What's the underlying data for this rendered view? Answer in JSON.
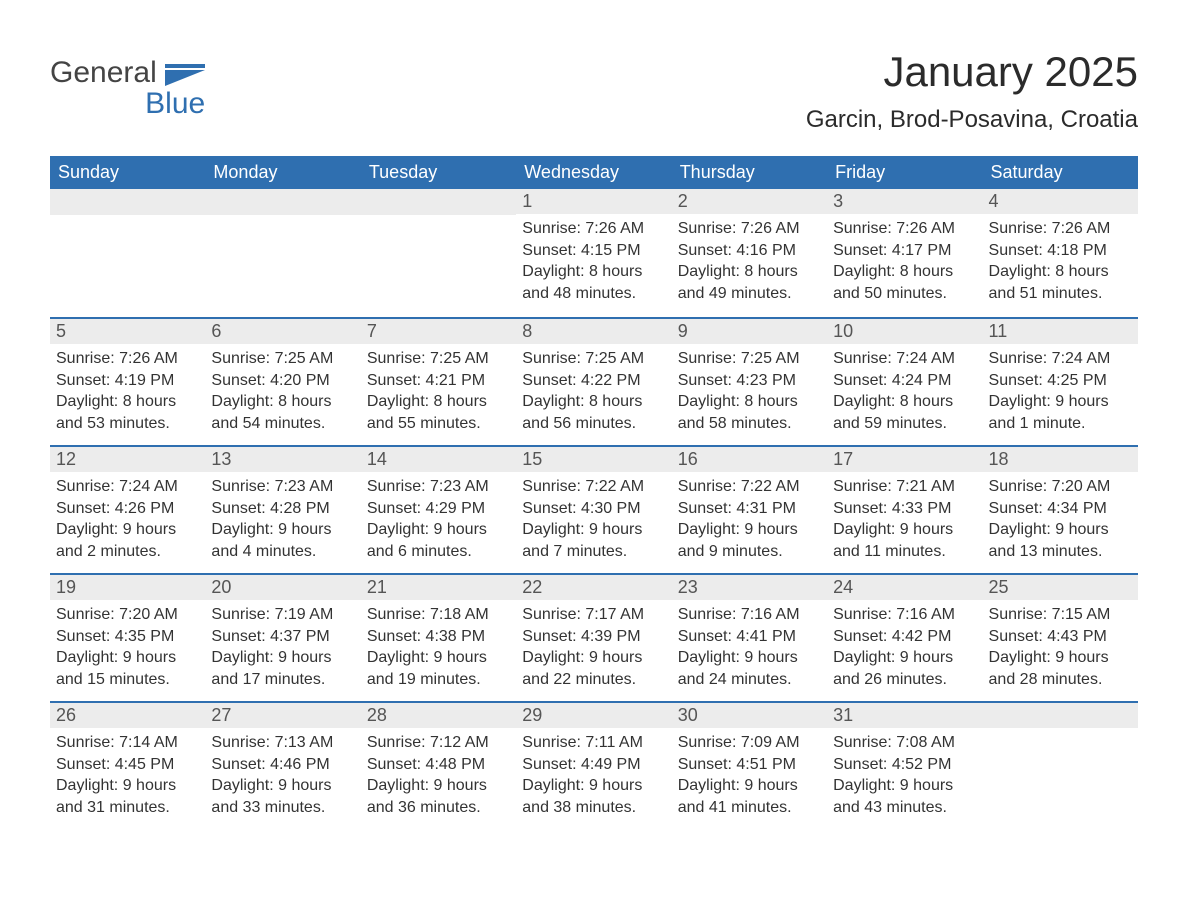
{
  "brand": {
    "word1": "General",
    "word2": "Blue"
  },
  "title": "January 2025",
  "subtitle": "Garcin, Brod-Posavina, Croatia",
  "colors": {
    "header_bg": "#2f6fb0",
    "header_text": "#ffffff",
    "daynum_bg": "#ececec",
    "daynum_text": "#555555",
    "body_text": "#333333",
    "row_border": "#2f6fb0",
    "page_bg": "#ffffff",
    "logo_gray": "#444444",
    "logo_blue": "#2f6fb0"
  },
  "day_headers": [
    "Sunday",
    "Monday",
    "Tuesday",
    "Wednesday",
    "Thursday",
    "Friday",
    "Saturday"
  ],
  "weeks": [
    [
      {
        "n": "",
        "lines": []
      },
      {
        "n": "",
        "lines": []
      },
      {
        "n": "",
        "lines": []
      },
      {
        "n": "1",
        "lines": [
          "Sunrise: 7:26 AM",
          "Sunset: 4:15 PM",
          "Daylight: 8 hours and 48 minutes."
        ]
      },
      {
        "n": "2",
        "lines": [
          "Sunrise: 7:26 AM",
          "Sunset: 4:16 PM",
          "Daylight: 8 hours and 49 minutes."
        ]
      },
      {
        "n": "3",
        "lines": [
          "Sunrise: 7:26 AM",
          "Sunset: 4:17 PM",
          "Daylight: 8 hours and 50 minutes."
        ]
      },
      {
        "n": "4",
        "lines": [
          "Sunrise: 7:26 AM",
          "Sunset: 4:18 PM",
          "Daylight: 8 hours and 51 minutes."
        ]
      }
    ],
    [
      {
        "n": "5",
        "lines": [
          "Sunrise: 7:26 AM",
          "Sunset: 4:19 PM",
          "Daylight: 8 hours and 53 minutes."
        ]
      },
      {
        "n": "6",
        "lines": [
          "Sunrise: 7:25 AM",
          "Sunset: 4:20 PM",
          "Daylight: 8 hours and 54 minutes."
        ]
      },
      {
        "n": "7",
        "lines": [
          "Sunrise: 7:25 AM",
          "Sunset: 4:21 PM",
          "Daylight: 8 hours and 55 minutes."
        ]
      },
      {
        "n": "8",
        "lines": [
          "Sunrise: 7:25 AM",
          "Sunset: 4:22 PM",
          "Daylight: 8 hours and 56 minutes."
        ]
      },
      {
        "n": "9",
        "lines": [
          "Sunrise: 7:25 AM",
          "Sunset: 4:23 PM",
          "Daylight: 8 hours and 58 minutes."
        ]
      },
      {
        "n": "10",
        "lines": [
          "Sunrise: 7:24 AM",
          "Sunset: 4:24 PM",
          "Daylight: 8 hours and 59 minutes."
        ]
      },
      {
        "n": "11",
        "lines": [
          "Sunrise: 7:24 AM",
          "Sunset: 4:25 PM",
          "Daylight: 9 hours and 1 minute."
        ]
      }
    ],
    [
      {
        "n": "12",
        "lines": [
          "Sunrise: 7:24 AM",
          "Sunset: 4:26 PM",
          "Daylight: 9 hours and 2 minutes."
        ]
      },
      {
        "n": "13",
        "lines": [
          "Sunrise: 7:23 AM",
          "Sunset: 4:28 PM",
          "Daylight: 9 hours and 4 minutes."
        ]
      },
      {
        "n": "14",
        "lines": [
          "Sunrise: 7:23 AM",
          "Sunset: 4:29 PM",
          "Daylight: 9 hours and 6 minutes."
        ]
      },
      {
        "n": "15",
        "lines": [
          "Sunrise: 7:22 AM",
          "Sunset: 4:30 PM",
          "Daylight: 9 hours and 7 minutes."
        ]
      },
      {
        "n": "16",
        "lines": [
          "Sunrise: 7:22 AM",
          "Sunset: 4:31 PM",
          "Daylight: 9 hours and 9 minutes."
        ]
      },
      {
        "n": "17",
        "lines": [
          "Sunrise: 7:21 AM",
          "Sunset: 4:33 PM",
          "Daylight: 9 hours and 11 minutes."
        ]
      },
      {
        "n": "18",
        "lines": [
          "Sunrise: 7:20 AM",
          "Sunset: 4:34 PM",
          "Daylight: 9 hours and 13 minutes."
        ]
      }
    ],
    [
      {
        "n": "19",
        "lines": [
          "Sunrise: 7:20 AM",
          "Sunset: 4:35 PM",
          "Daylight: 9 hours and 15 minutes."
        ]
      },
      {
        "n": "20",
        "lines": [
          "Sunrise: 7:19 AM",
          "Sunset: 4:37 PM",
          "Daylight: 9 hours and 17 minutes."
        ]
      },
      {
        "n": "21",
        "lines": [
          "Sunrise: 7:18 AM",
          "Sunset: 4:38 PM",
          "Daylight: 9 hours and 19 minutes."
        ]
      },
      {
        "n": "22",
        "lines": [
          "Sunrise: 7:17 AM",
          "Sunset: 4:39 PM",
          "Daylight: 9 hours and 22 minutes."
        ]
      },
      {
        "n": "23",
        "lines": [
          "Sunrise: 7:16 AM",
          "Sunset: 4:41 PM",
          "Daylight: 9 hours and 24 minutes."
        ]
      },
      {
        "n": "24",
        "lines": [
          "Sunrise: 7:16 AM",
          "Sunset: 4:42 PM",
          "Daylight: 9 hours and 26 minutes."
        ]
      },
      {
        "n": "25",
        "lines": [
          "Sunrise: 7:15 AM",
          "Sunset: 4:43 PM",
          "Daylight: 9 hours and 28 minutes."
        ]
      }
    ],
    [
      {
        "n": "26",
        "lines": [
          "Sunrise: 7:14 AM",
          "Sunset: 4:45 PM",
          "Daylight: 9 hours and 31 minutes."
        ]
      },
      {
        "n": "27",
        "lines": [
          "Sunrise: 7:13 AM",
          "Sunset: 4:46 PM",
          "Daylight: 9 hours and 33 minutes."
        ]
      },
      {
        "n": "28",
        "lines": [
          "Sunrise: 7:12 AM",
          "Sunset: 4:48 PM",
          "Daylight: 9 hours and 36 minutes."
        ]
      },
      {
        "n": "29",
        "lines": [
          "Sunrise: 7:11 AM",
          "Sunset: 4:49 PM",
          "Daylight: 9 hours and 38 minutes."
        ]
      },
      {
        "n": "30",
        "lines": [
          "Sunrise: 7:09 AM",
          "Sunset: 4:51 PM",
          "Daylight: 9 hours and 41 minutes."
        ]
      },
      {
        "n": "31",
        "lines": [
          "Sunrise: 7:08 AM",
          "Sunset: 4:52 PM",
          "Daylight: 9 hours and 43 minutes."
        ]
      },
      {
        "n": "",
        "lines": []
      }
    ]
  ]
}
